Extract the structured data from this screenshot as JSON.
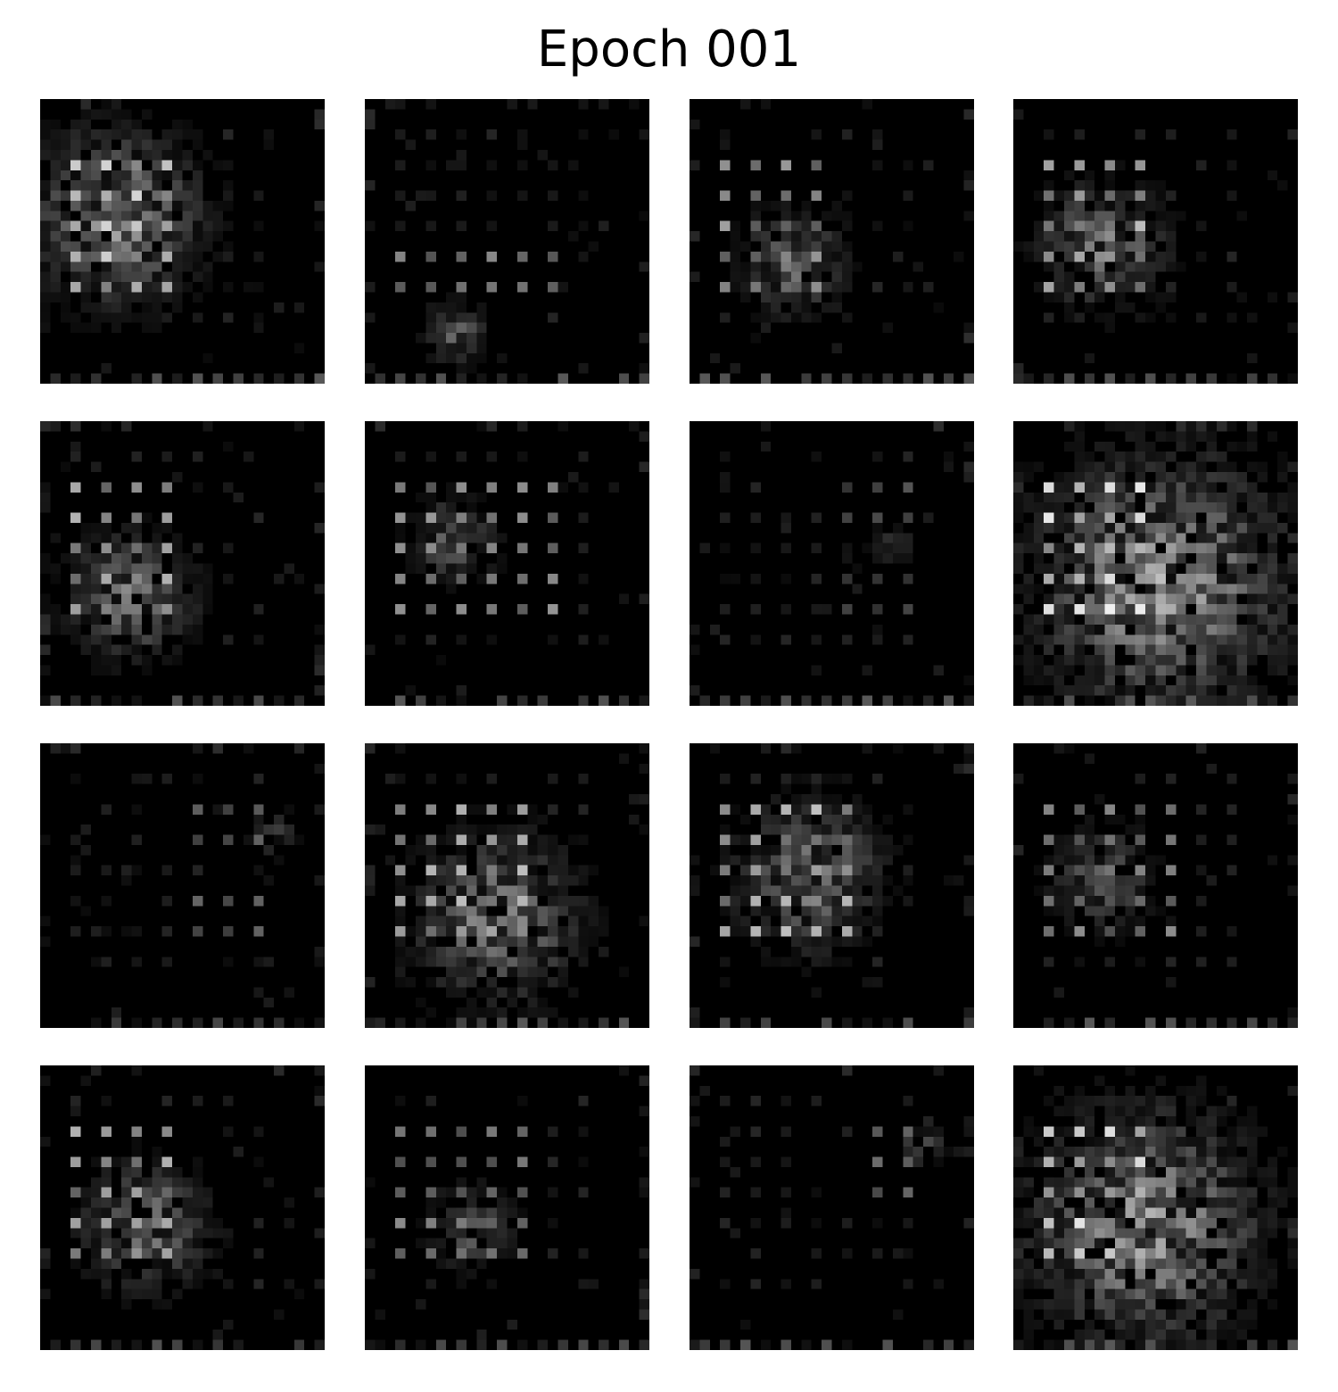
{
  "figure": {
    "title": "Epoch 001",
    "image_size": 28,
    "grid_rows": 4,
    "grid_cols": 4,
    "background_color": "#000000",
    "foreground_color": "#ffffff",
    "samples": [
      {
        "brightness": 0.85,
        "blob": [
          0.25,
          0.4,
          0.4
        ],
        "dots_cols": [
          0,
          1,
          2,
          3
        ],
        "dots_rows": [
          1,
          2,
          3,
          4,
          5
        ]
      },
      {
        "brightness": 0.55,
        "blob": [
          0.3,
          0.8,
          0.15
        ],
        "dots_cols": [
          0,
          1,
          2,
          3,
          4,
          5
        ],
        "dots_rows": [
          4,
          5
        ]
      },
      {
        "brightness": 0.65,
        "blob": [
          0.35,
          0.55,
          0.25
        ],
        "dots_cols": [
          0,
          1,
          2,
          3
        ],
        "dots_rows": [
          1,
          2,
          3,
          4,
          5
        ]
      },
      {
        "brightness": 0.75,
        "blob": [
          0.3,
          0.5,
          0.3
        ],
        "dots_cols": [
          0,
          1,
          2,
          3
        ],
        "dots_rows": [
          1,
          2,
          3,
          4,
          5
        ]
      },
      {
        "brightness": 0.7,
        "blob": [
          0.3,
          0.6,
          0.3
        ],
        "dots_cols": [
          0,
          1,
          2,
          3
        ],
        "dots_rows": [
          1,
          2,
          3,
          4,
          5
        ]
      },
      {
        "brightness": 0.6,
        "blob": [
          0.3,
          0.4,
          0.2
        ],
        "dots_cols": [
          0,
          1,
          2,
          3,
          4,
          5
        ],
        "dots_rows": [
          1,
          2,
          3,
          4,
          5
        ]
      },
      {
        "brightness": 0.35,
        "blob": [
          0.7,
          0.4,
          0.1
        ],
        "dots_cols": [
          4,
          5,
          6
        ],
        "dots_rows": [
          1,
          2,
          4,
          5
        ]
      },
      {
        "brightness": 0.95,
        "blob": [
          0.5,
          0.55,
          0.6
        ],
        "dots_cols": [
          0,
          1,
          2,
          3
        ],
        "dots_rows": [
          1,
          2,
          3,
          4,
          5
        ]
      },
      {
        "brightness": 0.4,
        "blob": [
          0.8,
          0.3,
          0.1
        ],
        "dots_cols": [
          4,
          5,
          6
        ],
        "dots_rows": [
          1,
          2,
          4,
          5
        ]
      },
      {
        "brightness": 0.75,
        "blob": [
          0.45,
          0.6,
          0.4
        ],
        "dots_cols": [
          0,
          1,
          2,
          3,
          4
        ],
        "dots_rows": [
          1,
          2,
          3,
          4,
          5
        ]
      },
      {
        "brightness": 0.75,
        "blob": [
          0.4,
          0.45,
          0.35
        ],
        "dots_cols": [
          0,
          1,
          2,
          3,
          4
        ],
        "dots_rows": [
          1,
          2,
          3,
          4,
          5
        ]
      },
      {
        "brightness": 0.55,
        "blob": [
          0.3,
          0.45,
          0.25
        ],
        "dots_cols": [
          0,
          1,
          2,
          3,
          4
        ],
        "dots_rows": [
          1,
          2,
          3,
          4,
          5
        ]
      },
      {
        "brightness": 0.7,
        "blob": [
          0.35,
          0.55,
          0.3
        ],
        "dots_cols": [
          0,
          1,
          2,
          3
        ],
        "dots_rows": [
          1,
          2,
          3,
          4,
          5
        ]
      },
      {
        "brightness": 0.55,
        "blob": [
          0.35,
          0.55,
          0.2
        ],
        "dots_cols": [
          0,
          1,
          2,
          3,
          4
        ],
        "dots_rows": [
          1,
          2,
          3,
          4,
          5
        ]
      },
      {
        "brightness": 0.45,
        "blob": [
          0.8,
          0.25,
          0.1
        ],
        "dots_cols": [
          5,
          6
        ],
        "dots_rows": [
          1,
          2,
          3
        ]
      },
      {
        "brightness": 0.9,
        "blob": [
          0.45,
          0.55,
          0.55
        ],
        "dots_cols": [
          0,
          1,
          2,
          3
        ],
        "dots_rows": [
          1,
          2,
          3,
          4,
          5
        ]
      }
    ]
  }
}
